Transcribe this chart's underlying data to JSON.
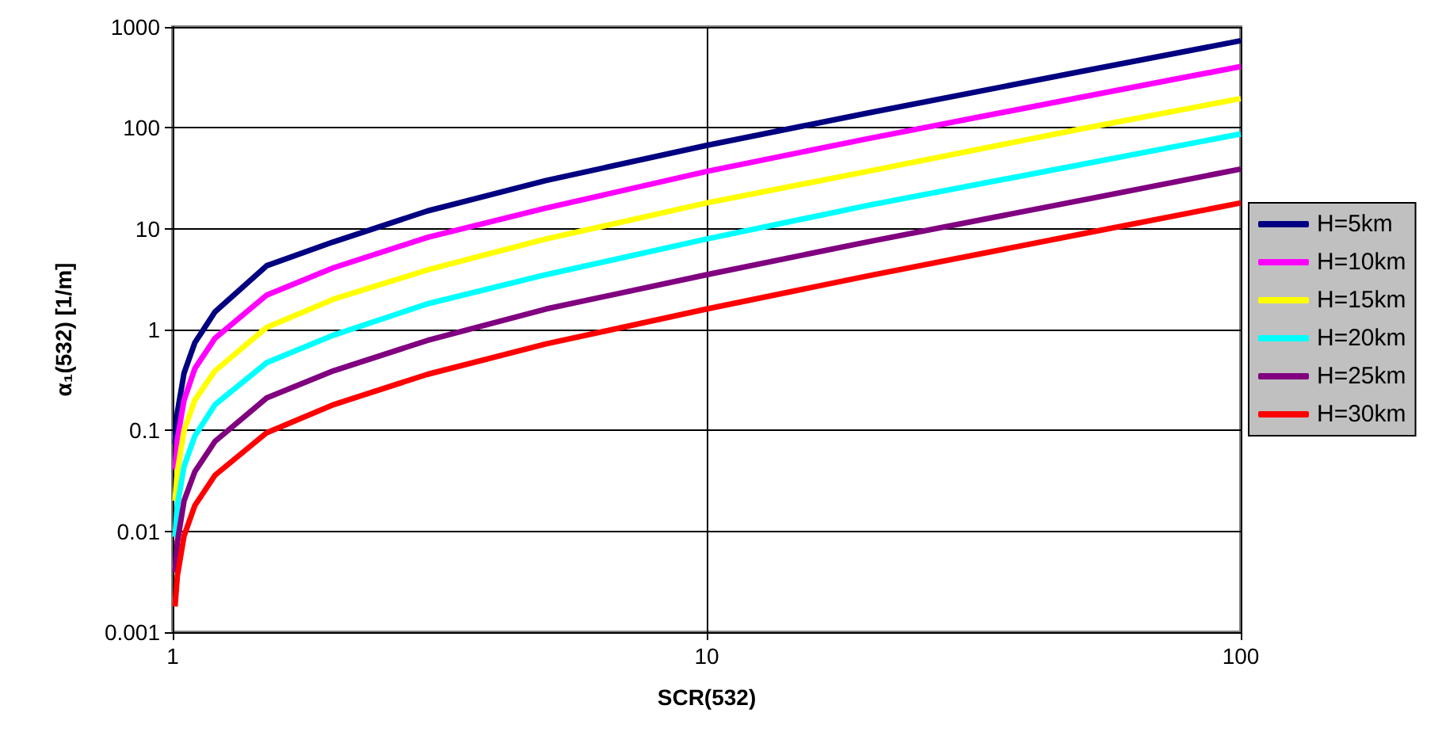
{
  "chart_data": {
    "type": "line",
    "xlabel": "SCR(532)",
    "ylabel": "α₁(532) [1/m]",
    "x": [
      1.01,
      1.02,
      1.05,
      1.1,
      1.2,
      1.5,
      2,
      3,
      5,
      10,
      20,
      50,
      100
    ],
    "series": [
      {
        "name": "H=5km",
        "color": "#000080",
        "values": [
          0.074,
          0.15,
          0.37,
          0.74,
          1.5,
          4.3,
          7.4,
          15,
          30,
          67,
          140,
          360,
          730
        ]
      },
      {
        "name": "H=10km",
        "color": "#ff00ff",
        "values": [
          0.041,
          0.082,
          0.2,
          0.41,
          0.82,
          2.2,
          4.1,
          8.2,
          16,
          37,
          78,
          200,
          405
        ]
      },
      {
        "name": "H=15km",
        "color": "#ffff00",
        "values": [
          0.02,
          0.039,
          0.1,
          0.2,
          0.39,
          1.05,
          2,
          3.9,
          7.9,
          18,
          37,
          97,
          195
        ]
      },
      {
        "name": "H=20km",
        "color": "#00ffff",
        "values": [
          0.0088,
          0.018,
          0.044,
          0.088,
          0.18,
          0.47,
          0.88,
          1.8,
          3.5,
          7.9,
          17,
          43,
          87
        ]
      },
      {
        "name": "H=25km",
        "color": "#800080",
        "values": [
          0.0039,
          0.0078,
          0.02,
          0.039,
          0.078,
          0.21,
          0.39,
          0.78,
          1.6,
          3.5,
          7.4,
          19,
          39
        ]
      },
      {
        "name": "H=30km",
        "color": "#ff0000",
        "values": [
          0.0018,
          0.0036,
          0.009,
          0.018,
          0.036,
          0.095,
          0.18,
          0.36,
          0.72,
          1.6,
          3.4,
          8.8,
          18
        ]
      }
    ],
    "xlim": [
      1,
      100
    ],
    "xticks": [
      1,
      10,
      100
    ],
    "ylim": [
      0.001,
      1000
    ],
    "yticks": [
      0.001,
      0.01,
      0.1,
      1,
      10,
      100,
      1000
    ],
    "log": "xy",
    "grid": true,
    "legend": "right",
    "marker": "none",
    "line_style": "solid"
  }
}
